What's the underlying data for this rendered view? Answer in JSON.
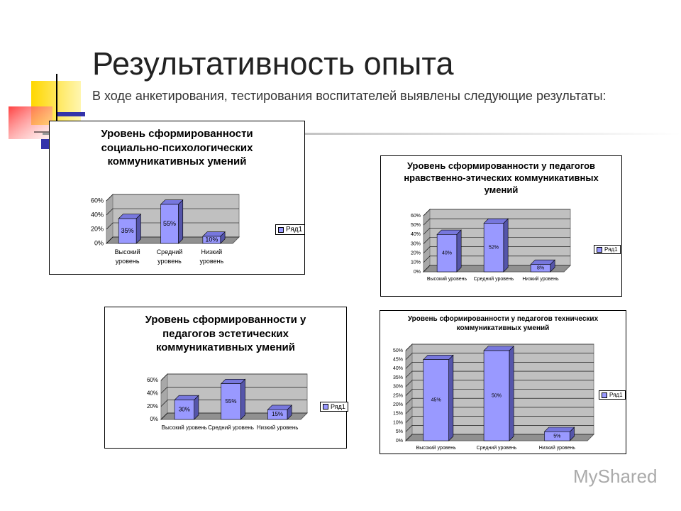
{
  "slide": {
    "title": "Результативность опыта",
    "subtitle": "В ходе анкетирования, тестирования воспитателей выявлены следующие результаты:",
    "watermark": "MyShared"
  },
  "chart_data": [
    {
      "type": "bar",
      "title": "Уровень сформированности социально-психологических коммуникативных умений",
      "categories": [
        "Высокий уровень",
        "Средний уровень",
        "Низкий уровень"
      ],
      "series": [
        {
          "name": "Ряд1",
          "color": "#9999ff",
          "values": [
            35,
            55,
            10
          ],
          "value_labels": [
            "35%",
            "55%",
            "10%"
          ]
        }
      ],
      "ylim": [
        0,
        60
      ],
      "yticks": [
        {
          "value": 0,
          "label": "0%"
        },
        {
          "value": 20,
          "label": "20%"
        },
        {
          "value": 40,
          "label": "40%"
        },
        {
          "value": 60,
          "label": "60%"
        }
      ],
      "grid": true,
      "legend": "right"
    },
    {
      "type": "bar",
      "title": "Уровень сформированности у педагогов нравственно-этических коммуникативных умений",
      "categories": [
        "Высокий уровень",
        "Средний уровень",
        "Низкий уровень"
      ],
      "series": [
        {
          "name": "Ряд1",
          "color": "#9999ff",
          "values": [
            40,
            52,
            8
          ],
          "value_labels": [
            "40%",
            "52%",
            "8%"
          ]
        }
      ],
      "ylim": [
        0,
        60
      ],
      "yticks": [
        {
          "value": 0,
          "label": "0%"
        },
        {
          "value": 10,
          "label": "10%"
        },
        {
          "value": 20,
          "label": "20%"
        },
        {
          "value": 30,
          "label": "30%"
        },
        {
          "value": 40,
          "label": "40%"
        },
        {
          "value": 50,
          "label": "50%"
        },
        {
          "value": 60,
          "label": "60%"
        }
      ],
      "grid": true,
      "legend": "right"
    },
    {
      "type": "bar",
      "title": "Уровень сформированности у педагогов эстетических коммуникативных умений",
      "categories": [
        "Высокий уровень",
        "Средний уровень",
        "Низкий уровень"
      ],
      "series": [
        {
          "name": "Ряд1",
          "color": "#9999ff",
          "values": [
            30,
            55,
            15
          ],
          "value_labels": [
            "30%",
            "55%",
            "15%"
          ]
        }
      ],
      "ylim": [
        0,
        60
      ],
      "yticks": [
        {
          "value": 0,
          "label": "0%"
        },
        {
          "value": 20,
          "label": "20%"
        },
        {
          "value": 40,
          "label": "40%"
        },
        {
          "value": 60,
          "label": "60%"
        }
      ],
      "grid": true,
      "legend": "right"
    },
    {
      "type": "bar",
      "title": "Уровень сформированности у педагогов технических коммуникативных умений",
      "categories": [
        "Высокий уровень",
        "Средний уровень",
        "Низкий уровень"
      ],
      "series": [
        {
          "name": "Ряд1",
          "color": "#9999ff",
          "values": [
            45,
            50,
            5
          ],
          "value_labels": [
            "45%",
            "50%",
            "5%"
          ]
        }
      ],
      "ylim": [
        0,
        50
      ],
      "yticks": [
        {
          "value": 0,
          "label": "0%"
        },
        {
          "value": 5,
          "label": "5%"
        },
        {
          "value": 10,
          "label": "10%"
        },
        {
          "value": 15,
          "label": "15%"
        },
        {
          "value": 20,
          "label": "20%"
        },
        {
          "value": 25,
          "label": "25%"
        },
        {
          "value": 30,
          "label": "30%"
        },
        {
          "value": 35,
          "label": "35%"
        },
        {
          "value": 40,
          "label": "40%"
        },
        {
          "value": 45,
          "label": "45%"
        },
        {
          "value": 50,
          "label": "50%"
        }
      ],
      "grid": true,
      "legend": "right"
    }
  ]
}
